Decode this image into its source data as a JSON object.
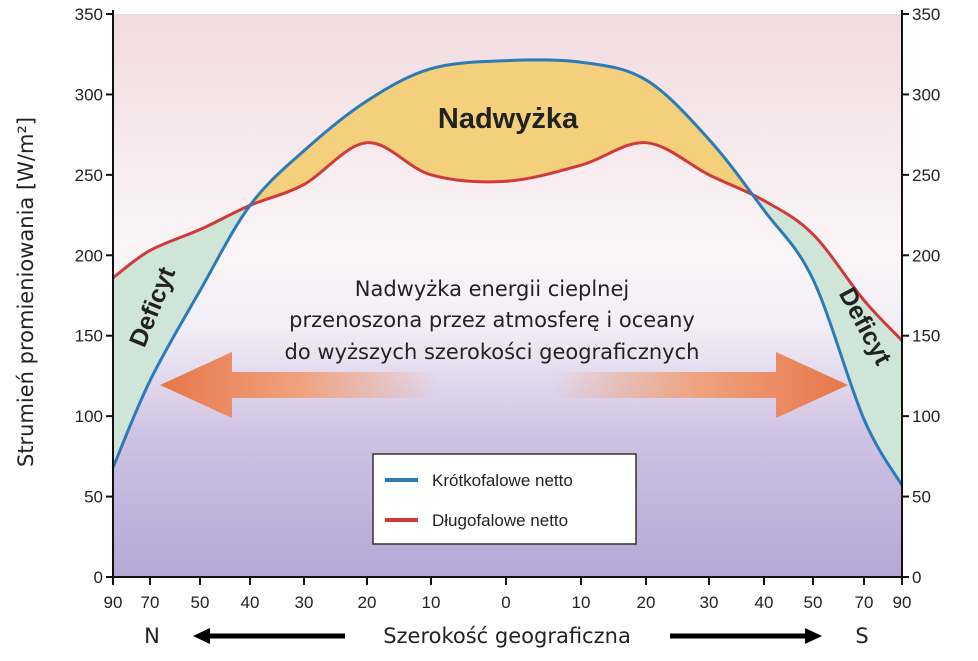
{
  "chart_data": {
    "type": "line",
    "title": "",
    "xlabel": "Szerokość geograficzna",
    "x_direction_labels": {
      "left": "N",
      "right": "S"
    },
    "ylabel": "Strumień promieniowania [W/m²]",
    "ylim": [
      0,
      350
    ],
    "yticks": [
      0,
      50,
      100,
      150,
      200,
      250,
      300,
      350
    ],
    "xticks": [
      {
        "lat": 90,
        "hemi": "N"
      },
      {
        "lat": 70,
        "hemi": "N"
      },
      {
        "lat": 50,
        "hemi": "N"
      },
      {
        "lat": 40,
        "hemi": "N"
      },
      {
        "lat": 30,
        "hemi": "N"
      },
      {
        "lat": 20,
        "hemi": "N"
      },
      {
        "lat": 10,
        "hemi": "N"
      },
      {
        "lat": 0,
        "hemi": ""
      },
      {
        "lat": 10,
        "hemi": "S"
      },
      {
        "lat": 20,
        "hemi": "S"
      },
      {
        "lat": 30,
        "hemi": "S"
      },
      {
        "lat": 40,
        "hemi": "S"
      },
      {
        "lat": 50,
        "hemi": "S"
      },
      {
        "lat": 70,
        "hemi": "S"
      },
      {
        "lat": 90,
        "hemi": "S"
      }
    ],
    "grid": false,
    "legend": "bottom-center",
    "series": [
      {
        "name": "Krótkofalowe netto",
        "color": "#2b7bb9",
        "points": [
          {
            "lat": 90,
            "hemi": "N",
            "v": 68
          },
          {
            "lat": 70,
            "hemi": "N",
            "v": 122
          },
          {
            "lat": 50,
            "hemi": "N",
            "v": 178
          },
          {
            "lat": 40,
            "hemi": "N",
            "v": 231
          },
          {
            "lat": 30,
            "hemi": "N",
            "v": 265
          },
          {
            "lat": 20,
            "hemi": "N",
            "v": 296
          },
          {
            "lat": 10,
            "hemi": "N",
            "v": 316
          },
          {
            "lat": 0,
            "hemi": "",
            "v": 321
          },
          {
            "lat": 10,
            "hemi": "S",
            "v": 320
          },
          {
            "lat": 20,
            "hemi": "S",
            "v": 309
          },
          {
            "lat": 30,
            "hemi": "S",
            "v": 272
          },
          {
            "lat": 40,
            "hemi": "S",
            "v": 228
          },
          {
            "lat": 50,
            "hemi": "S",
            "v": 185
          },
          {
            "lat": 70,
            "hemi": "S",
            "v": 98
          },
          {
            "lat": 90,
            "hemi": "S",
            "v": 57
          }
        ]
      },
      {
        "name": "Długofalowe netto",
        "color": "#d13a3a",
        "points": [
          {
            "lat": 90,
            "hemi": "N",
            "v": 186
          },
          {
            "lat": 70,
            "hemi": "N",
            "v": 203
          },
          {
            "lat": 50,
            "hemi": "N",
            "v": 216
          },
          {
            "lat": 40,
            "hemi": "N",
            "v": 231
          },
          {
            "lat": 30,
            "hemi": "N",
            "v": 244
          },
          {
            "lat": 20,
            "hemi": "N",
            "v": 270
          },
          {
            "lat": 10,
            "hemi": "N",
            "v": 250
          },
          {
            "lat": 0,
            "hemi": "",
            "v": 246
          },
          {
            "lat": 10,
            "hemi": "S",
            "v": 256
          },
          {
            "lat": 20,
            "hemi": "S",
            "v": 270
          },
          {
            "lat": 30,
            "hemi": "S",
            "v": 250
          },
          {
            "lat": 40,
            "hemi": "S",
            "v": 234
          },
          {
            "lat": 50,
            "hemi": "S",
            "v": 213
          },
          {
            "lat": 70,
            "hemi": "S",
            "v": 172
          },
          {
            "lat": 90,
            "hemi": "S",
            "v": 147
          }
        ]
      }
    ],
    "annotations": {
      "surplus": "Nadwyżka",
      "deficit_left": "Deficyt",
      "deficit_right": "Deficyt",
      "transport_line1": "Nadwyżka energii cieplnej",
      "transport_line2": "przenoszona przez atmosferę i oceany",
      "transport_line3": "do wyższych szerokości geograficznych"
    },
    "colors": {
      "surplus_fill": "#f4cf7c",
      "deficit_fill": "#cfe5d8",
      "arrow": "#e8764a"
    }
  }
}
